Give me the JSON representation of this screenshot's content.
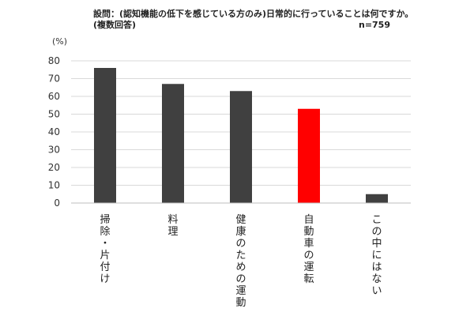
{
  "header": {
    "title": "設問：(認知機能の低下を感じている方のみ)日常的に行っていることは何ですか。",
    "subtitle": "(複数回答)",
    "sample_size": "n=759"
  },
  "chart_data": {
    "type": "bar",
    "title": "設問：(認知機能の低下を感じている方のみ)日常的に行っていることは何ですか。",
    "subtitle": "(複数回答)",
    "unit": "(%)",
    "categories": [
      "掃除・片付け",
      "料理",
      "健康のための運動",
      "自動車の運転",
      "この中にはない"
    ],
    "values": [
      76,
      67,
      63,
      53,
      5
    ],
    "colors": [
      "#404040",
      "#404040",
      "#404040",
      "#ff0000",
      "#404040"
    ],
    "ylim": [
      0,
      80
    ],
    "yticks": [
      0,
      10,
      20,
      30,
      40,
      50,
      60,
      70,
      80
    ],
    "grid": true,
    "legend": "none",
    "xlabel": "",
    "ylabel": ""
  }
}
